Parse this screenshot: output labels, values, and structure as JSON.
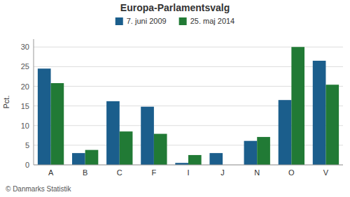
{
  "chart_data": {
    "type": "bar",
    "title": "Europa-Parlamentsvalg",
    "categories": [
      "A",
      "B",
      "C",
      "F",
      "I",
      "J",
      "N",
      "O",
      "V"
    ],
    "series": [
      {
        "name": "7. juni 2009",
        "color": "#1b5e8c",
        "values": [
          24.5,
          3.0,
          16.2,
          14.8,
          0.5,
          3.0,
          6.1,
          16.5,
          26.5
        ]
      },
      {
        "name": "25. maj 2014",
        "color": "#217a35",
        "values": [
          20.8,
          3.8,
          8.5,
          7.9,
          2.5,
          0.0,
          7.1,
          30.0,
          20.4
        ]
      }
    ],
    "ylabel": "Pct.",
    "ylim": [
      0,
      32
    ],
    "yticks": [
      0,
      5,
      10,
      15,
      20,
      25,
      30
    ],
    "grid": true,
    "legend": "top",
    "footer": "© Danmarks Statistik"
  }
}
